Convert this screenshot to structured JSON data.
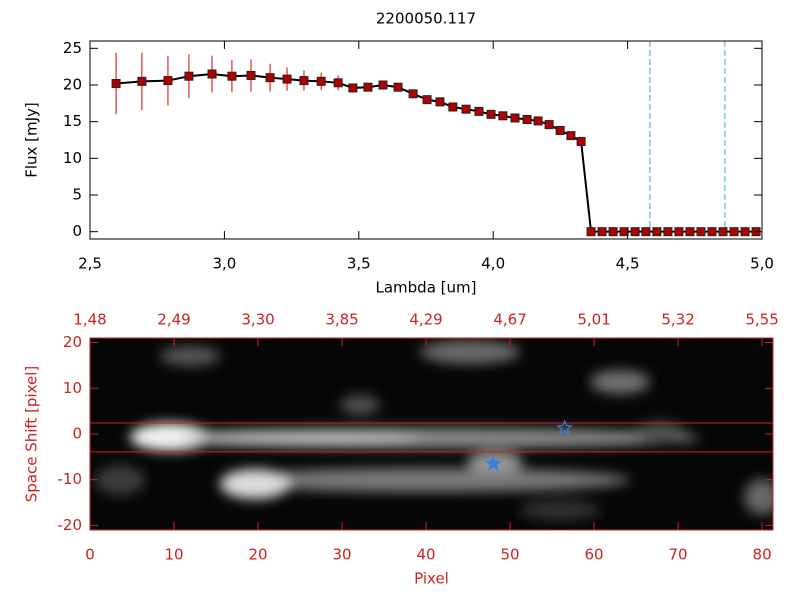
{
  "chart_data": [
    {
      "type": "line",
      "title": "2200050.117",
      "x_label": "Lambda [um]",
      "y_label": "Flux [mJy]",
      "xlim": [
        2.5,
        5.0
      ],
      "ylim": [
        -1,
        26
      ],
      "xticks": [
        {
          "value": 2.5,
          "label": "2,5"
        },
        {
          "value": 3.0,
          "label": "3,0"
        },
        {
          "value": 3.5,
          "label": "3,5"
        },
        {
          "value": 4.0,
          "label": "4,0"
        },
        {
          "value": 4.5,
          "label": "4,5"
        },
        {
          "value": 5.0,
          "label": "5,0"
        }
      ],
      "yticks": [
        0,
        5,
        10,
        15,
        20,
        25
      ],
      "x": [
        2.597,
        2.693,
        2.79,
        2.868,
        2.954,
        3.028,
        3.099,
        3.17,
        3.233,
        3.296,
        3.36,
        3.423,
        3.478,
        3.534,
        3.59,
        3.646,
        3.702,
        3.754,
        3.802,
        3.85,
        3.899,
        3.947,
        3.992,
        4.036,
        4.081,
        4.126,
        4.167,
        4.208,
        4.249,
        4.289,
        4.327,
        4.364,
        4.405,
        4.446,
        4.487,
        4.528,
        4.568,
        4.609,
        4.65,
        4.691,
        4.732,
        4.773,
        4.814,
        4.855,
        4.896,
        4.937,
        4.978
      ],
      "series": [
        {
          "color": "#b00000",
          "line_color": "#000000",
          "error_color": "#dd0000",
          "values": [
            20.2,
            20.5,
            20.6,
            21.2,
            21.5,
            21.2,
            21.3,
            21.0,
            20.8,
            20.6,
            20.5,
            20.3,
            19.6,
            19.7,
            20.0,
            19.7,
            18.8,
            18.0,
            17.7,
            17.0,
            16.7,
            16.4,
            16.0,
            15.8,
            15.5,
            15.3,
            15.1,
            14.6,
            13.8,
            13.1,
            12.3,
            0,
            0,
            0,
            0,
            0,
            0,
            0,
            0,
            0,
            0,
            0,
            0,
            0,
            0,
            0,
            0
          ],
          "errors": [
            4.2,
            3.9,
            3.4,
            3.0,
            2.5,
            2.2,
            2.2,
            1.9,
            1.6,
            1.4,
            1.2,
            1.0,
            0.6,
            0.5,
            0.5,
            0.5,
            0.4,
            0.4,
            0.4,
            0.4,
            0.3,
            0.3,
            0.3,
            0.3,
            0.3,
            0.3,
            0.3,
            0.3,
            0.4,
            0.4,
            0.4,
            0.2,
            0.2,
            0.2,
            0.2,
            0.2,
            0.2,
            0.2,
            0.2,
            0.2,
            0.2,
            0.2,
            0.2,
            0.2,
            0.2,
            0.2,
            0.2
          ]
        }
      ],
      "vlines": [
        4.583,
        4.862
      ],
      "vline_color": "#3aa6d8",
      "axis_color": "#000000"
    },
    {
      "type": "image",
      "x_label": "Pixel",
      "y_label": "Space Shift [pixel]",
      "xlim": [
        0,
        81.3
      ],
      "ylim": [
        -21,
        21
      ],
      "xticks": [
        0,
        10,
        20,
        30,
        40,
        50,
        60,
        70,
        80
      ],
      "yticks": [
        -20,
        -10,
        0,
        10,
        20
      ],
      "x2ticks": [
        {
          "value": 0,
          "label": "1,48"
        },
        {
          "value": 10,
          "label": "2,49"
        },
        {
          "value": 20,
          "label": "3,30"
        },
        {
          "value": 30,
          "label": "3,85"
        },
        {
          "value": 40,
          "label": "4,29"
        },
        {
          "value": 50,
          "label": "4,67"
        },
        {
          "value": 60,
          "label": "5,01"
        },
        {
          "value": 70,
          "label": "5,32"
        },
        {
          "value": 80,
          "label": "5,55"
        }
      ],
      "hlines": [
        2.4,
        -3.9
      ],
      "axis_color": "#cc2222",
      "markers": [
        {
          "x": 56.5,
          "y": 1.3,
          "color": "#3a7fd8",
          "filled": false
        },
        {
          "x": 48,
          "y": -6.5,
          "color": "#3a7fd8",
          "filled": true
        }
      ]
    }
  ]
}
